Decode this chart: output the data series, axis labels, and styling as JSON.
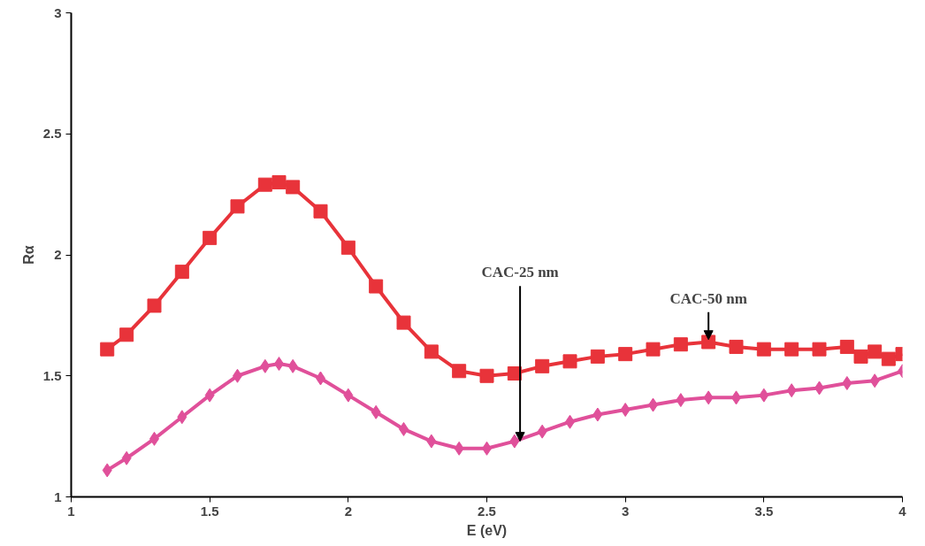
{
  "chart_data": {
    "type": "line",
    "xlabel": "E (eV)",
    "ylabel": "Rα",
    "xlim": [
      1,
      4
    ],
    "ylim": [
      1,
      3
    ],
    "xticks": [
      1,
      1.5,
      2,
      2.5,
      3,
      3.5,
      4
    ],
    "yticks": [
      1,
      1.5,
      2,
      2.5,
      3
    ],
    "grid": false,
    "series": [
      {
        "color": "#e8333a",
        "marker": "square",
        "x": [
          1.13,
          1.2,
          1.3,
          1.4,
          1.5,
          1.6,
          1.7,
          1.75,
          1.8,
          1.9,
          2.0,
          2.1,
          2.2,
          2.3,
          2.4,
          2.5,
          2.6,
          2.7,
          2.8,
          2.9,
          3.0,
          3.1,
          3.2,
          3.3,
          3.4,
          3.5,
          3.6,
          3.7,
          3.8,
          3.85,
          3.9,
          3.95,
          4.0
        ],
        "values": [
          1.61,
          1.67,
          1.79,
          1.93,
          2.07,
          2.2,
          2.29,
          2.3,
          2.28,
          2.18,
          2.03,
          1.87,
          1.72,
          1.6,
          1.52,
          1.5,
          1.51,
          1.54,
          1.56,
          1.58,
          1.59,
          1.61,
          1.63,
          1.64,
          1.62,
          1.61,
          1.61,
          1.61,
          1.62,
          1.58,
          1.6,
          1.57,
          1.59
        ]
      },
      {
        "color": "#e0509a",
        "marker": "diamond",
        "x": [
          1.13,
          1.2,
          1.3,
          1.4,
          1.5,
          1.6,
          1.7,
          1.75,
          1.8,
          1.9,
          2.0,
          2.1,
          2.2,
          2.3,
          2.4,
          2.5,
          2.6,
          2.7,
          2.8,
          2.9,
          3.0,
          3.1,
          3.2,
          3.3,
          3.4,
          3.5,
          3.6,
          3.7,
          3.8,
          3.9,
          4.0
        ],
        "values": [
          1.11,
          1.16,
          1.24,
          1.33,
          1.42,
          1.5,
          1.54,
          1.55,
          1.54,
          1.49,
          1.42,
          1.35,
          1.28,
          1.23,
          1.2,
          1.2,
          1.23,
          1.27,
          1.31,
          1.34,
          1.36,
          1.38,
          1.4,
          1.41,
          1.41,
          1.42,
          1.44,
          1.45,
          1.47,
          1.48,
          1.52
        ]
      }
    ],
    "annotations": [
      {
        "text": "CAC-25 nm",
        "x": 2.62,
        "y": 1.23
      },
      {
        "text": "CAC-50 nm",
        "x": 3.3,
        "y": 1.65
      }
    ]
  }
}
